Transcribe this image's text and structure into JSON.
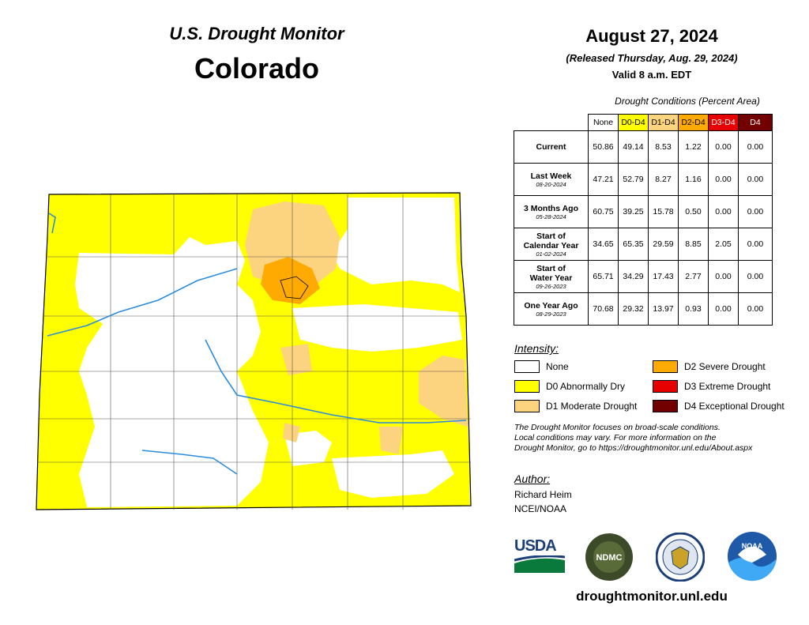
{
  "header": {
    "title_line1": "U.S. Drought Monitor",
    "title_line2": "Colorado",
    "date": "August 27, 2024",
    "released": "(Released Thursday, Aug. 29, 2024)",
    "valid": "Valid 8 a.m. EDT"
  },
  "table": {
    "title": "Drought Conditions (Percent Area)",
    "columns": [
      "None",
      "D0-D4",
      "D1-D4",
      "D2-D4",
      "D3-D4",
      "D4"
    ],
    "rows": [
      {
        "label": "Current",
        "sub": "",
        "values": [
          "50.86",
          "49.14",
          "8.53",
          "1.22",
          "0.00",
          "0.00"
        ]
      },
      {
        "label": "Last Week",
        "sub": "08-20-2024",
        "values": [
          "47.21",
          "52.79",
          "8.27",
          "1.16",
          "0.00",
          "0.00"
        ]
      },
      {
        "label": "3 Months Ago",
        "sub": "05-28-2024",
        "values": [
          "60.75",
          "39.25",
          "15.78",
          "0.50",
          "0.00",
          "0.00"
        ]
      },
      {
        "label1": "Start of",
        "label2": "Calendar Year",
        "sub": "01-02-2024",
        "values": [
          "34.65",
          "65.35",
          "29.59",
          "8.85",
          "2.05",
          "0.00"
        ]
      },
      {
        "label1": "Start of",
        "label2": "Water Year",
        "sub": "09-26-2023",
        "values": [
          "65.71",
          "34.29",
          "17.43",
          "2.77",
          "0.00",
          "0.00"
        ]
      },
      {
        "label": "One Year Ago",
        "sub": "08-29-2023",
        "values": [
          "70.68",
          "29.32",
          "13.97",
          "0.93",
          "0.00",
          "0.00"
        ]
      }
    ]
  },
  "legend": {
    "heading": "Intensity:",
    "items": [
      {
        "label": "None",
        "color": "#ffffff"
      },
      {
        "label": "D0 Abnormally Dry",
        "color": "#ffff00"
      },
      {
        "label": "D1 Moderate Drought",
        "color": "#fcd37f"
      },
      {
        "label": "D2 Severe Drought",
        "color": "#ffaa00"
      },
      {
        "label": "D3 Extreme Drought",
        "color": "#e60000"
      },
      {
        "label": "D4 Exceptional Drought",
        "color": "#730000"
      }
    ]
  },
  "note": {
    "line1": "The Drought Monitor focuses on broad-scale conditions.",
    "line2": "Local conditions may vary. For more information on the",
    "line3": "Drought Monitor, go to https://droughtmonitor.unl.edu/About.aspx"
  },
  "author": {
    "heading": "Author:",
    "name": "Richard Heim",
    "org": "NCEI/NOAA"
  },
  "logos": {
    "usda": "USDA",
    "ndmc": "NDMC",
    "noaa": "NOAA"
  },
  "footer": {
    "site": "droughtmonitor.unl.edu"
  },
  "map": {
    "state": "Colorado"
  }
}
